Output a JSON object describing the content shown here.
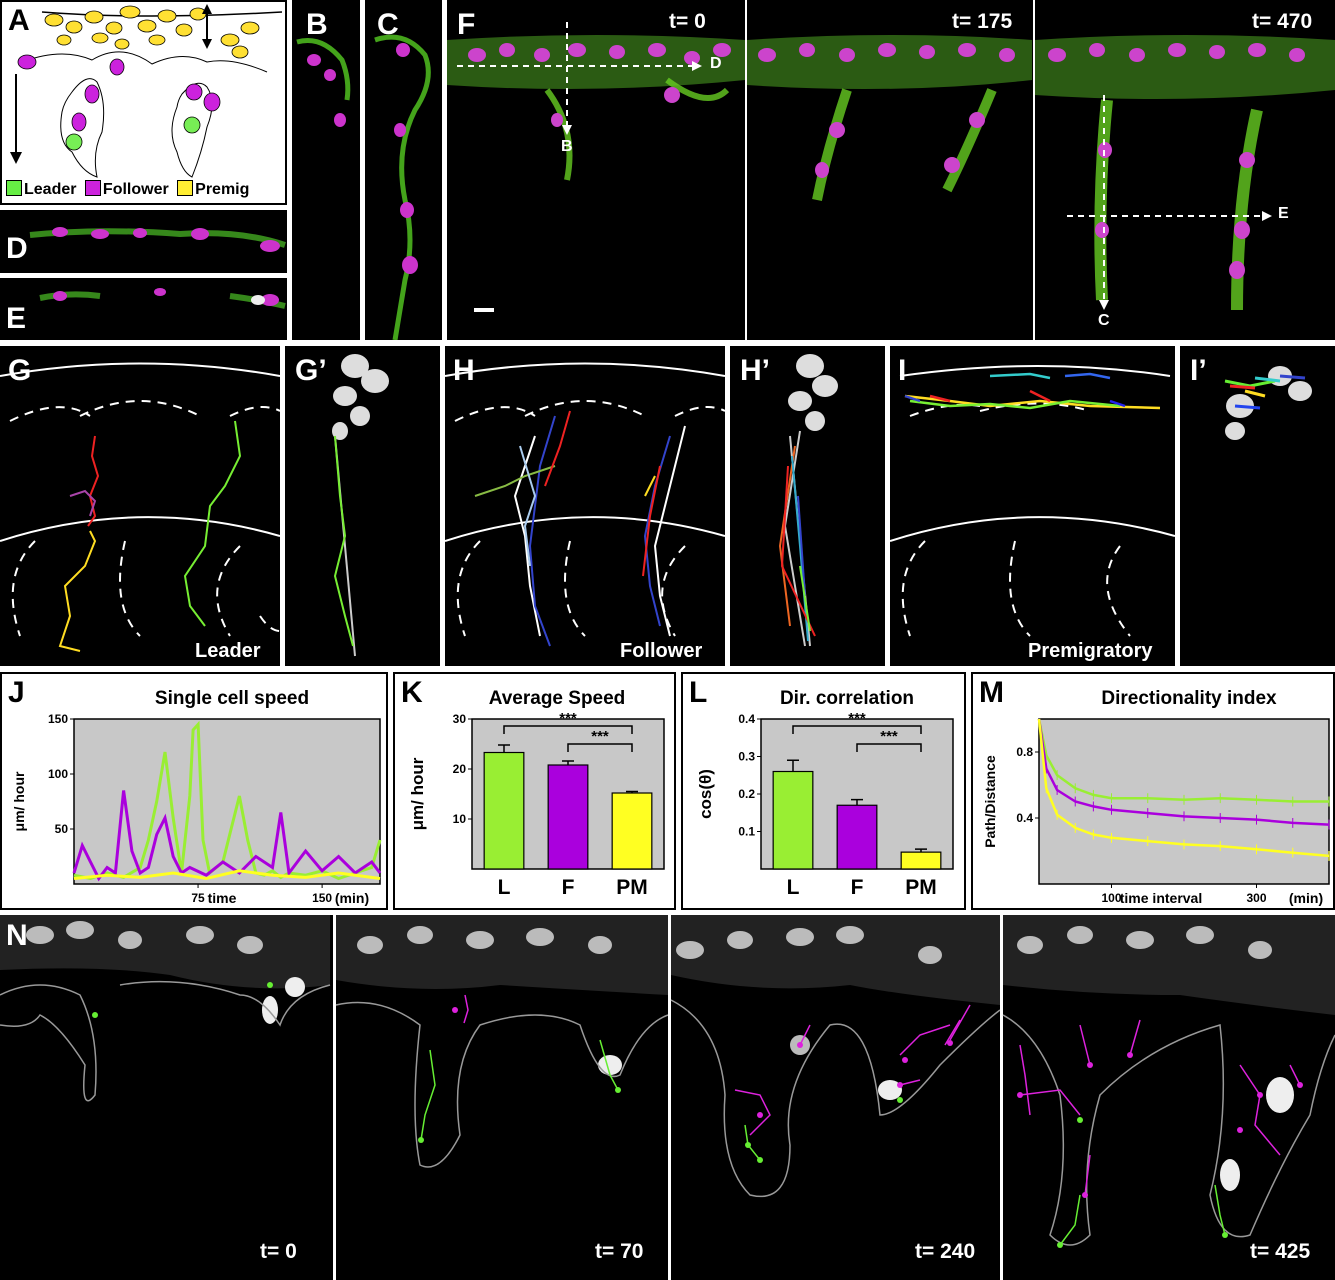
{
  "panel_labels": {
    "a": "A",
    "b": "B",
    "c": "C",
    "d": "D",
    "e": "E",
    "f": "F",
    "g": "G",
    "g2": "G’",
    "h": "H",
    "h2": "H’",
    "i": "I",
    "i2": "I’",
    "j": "J",
    "k": "K",
    "l": "L",
    "m": "M",
    "n": "N"
  },
  "schematic": {
    "legend": [
      {
        "label": "Leader",
        "color": "#66ee44"
      },
      {
        "label": "Follower",
        "color": "#cc22dd"
      },
      {
        "label": "Premig",
        "color": "#ffee33"
      }
    ]
  },
  "panel_f": {
    "times": [
      "t= 0",
      "t= 175",
      "t= 470"
    ],
    "section_marks": {
      "d": "D",
      "b": "B",
      "e": "E",
      "c": "C"
    }
  },
  "track_panels": {
    "leader": "Leader",
    "follower": "Follower",
    "premigratory": "Premigratory"
  },
  "panel_n": {
    "times": [
      "t= 0",
      "t= 70",
      "t= 240",
      "t= 425"
    ]
  },
  "colors": {
    "leader": "#99ee33",
    "follower": "#aa00dd",
    "premigratory": "#ffff22",
    "plot_bg": "#c8c8c8",
    "membrane": "#66ee22",
    "nucleus": "#dd33dd"
  },
  "chart_data": [
    {
      "type": "line",
      "title": "Single cell speed",
      "ylabel": "μm/ hour",
      "xlabel": "time",
      "xunit": "(min)",
      "xlim": [
        0,
        185
      ],
      "ylim": [
        0,
        150
      ],
      "xticks": [
        75,
        150
      ],
      "yticks": [
        50,
        100,
        150
      ],
      "series": [
        {
          "color": "leader",
          "x": [
            0,
            10,
            20,
            30,
            40,
            45,
            50,
            55,
            60,
            65,
            70,
            72,
            75,
            78,
            82,
            90,
            95,
            100,
            105,
            110,
            115,
            120,
            125,
            130,
            140,
            150,
            160,
            170,
            180,
            185
          ],
          "y": [
            8,
            5,
            10,
            6,
            15,
            40,
            75,
            120,
            60,
            10,
            80,
            140,
            145,
            40,
            10,
            20,
            50,
            80,
            40,
            10,
            8,
            12,
            6,
            10,
            8,
            12,
            5,
            10,
            15,
            40
          ]
        },
        {
          "color": "follower",
          "x": [
            0,
            5,
            10,
            15,
            20,
            25,
            30,
            35,
            40,
            45,
            50,
            55,
            60,
            65,
            70,
            80,
            90,
            100,
            110,
            120,
            125,
            130,
            140,
            150,
            160,
            170,
            180,
            185
          ],
          "y": [
            10,
            35,
            20,
            5,
            15,
            10,
            85,
            30,
            10,
            15,
            45,
            60,
            25,
            10,
            15,
            8,
            20,
            10,
            25,
            15,
            65,
            10,
            30,
            12,
            25,
            10,
            20,
            10
          ]
        },
        {
          "color": "premigratory",
          "x": [
            0,
            20,
            40,
            60,
            80,
            100,
            120,
            140,
            160,
            185
          ],
          "y": [
            5,
            8,
            6,
            10,
            5,
            12,
            8,
            6,
            10,
            5
          ]
        }
      ]
    },
    {
      "type": "bar",
      "title": "Average Speed",
      "ylabel": "μm/ hour",
      "ylim": [
        0,
        30
      ],
      "yticks": [
        10,
        20,
        30
      ],
      "categories": [
        "L",
        "F",
        "PM"
      ],
      "values": [
        23.3,
        20.8,
        15.2
      ],
      "errors": [
        1.5,
        0.8,
        0.3
      ],
      "significance": [
        {
          "from": "L",
          "to": "PM",
          "label": "***"
        },
        {
          "from": "F",
          "to": "PM",
          "label": "***"
        }
      ]
    },
    {
      "type": "bar",
      "title": "Dir. correlation",
      "ylabel": "cos(θ)",
      "ylim": [
        0,
        0.4
      ],
      "yticks": [
        0.1,
        0.2,
        0.3,
        0.4
      ],
      "categories": [
        "L",
        "F",
        "PM"
      ],
      "values": [
        0.26,
        0.17,
        0.045
      ],
      "errors": [
        0.03,
        0.015,
        0.008
      ],
      "significance": [
        {
          "from": "L",
          "to": "PM",
          "label": "***"
        },
        {
          "from": "F",
          "to": "PM",
          "label": "***"
        }
      ]
    },
    {
      "type": "line",
      "title": "Directionality index",
      "ylabel": "Path/Distance",
      "xlabel": "time interval",
      "xunit": "(min)",
      "xlim": [
        0,
        400
      ],
      "ylim": [
        0,
        1
      ],
      "xticks": [
        100,
        300
      ],
      "yticks": [
        0.4,
        0.8
      ],
      "series": [
        {
          "color": "leader",
          "x": [
            0,
            10,
            25,
            50,
            75,
            100,
            150,
            200,
            250,
            300,
            350,
            400
          ],
          "y": [
            1.0,
            0.78,
            0.66,
            0.58,
            0.54,
            0.52,
            0.52,
            0.51,
            0.52,
            0.51,
            0.5,
            0.5
          ]
        },
        {
          "color": "follower",
          "x": [
            0,
            10,
            25,
            50,
            75,
            100,
            150,
            200,
            250,
            300,
            350,
            400
          ],
          "y": [
            1.0,
            0.7,
            0.57,
            0.5,
            0.47,
            0.45,
            0.43,
            0.41,
            0.4,
            0.39,
            0.37,
            0.36
          ]
        },
        {
          "color": "premigratory",
          "x": [
            0,
            10,
            25,
            50,
            75,
            100,
            150,
            200,
            250,
            300,
            350,
            400
          ],
          "y": [
            1.0,
            0.58,
            0.42,
            0.34,
            0.3,
            0.28,
            0.26,
            0.24,
            0.23,
            0.21,
            0.19,
            0.17
          ]
        }
      ]
    }
  ]
}
